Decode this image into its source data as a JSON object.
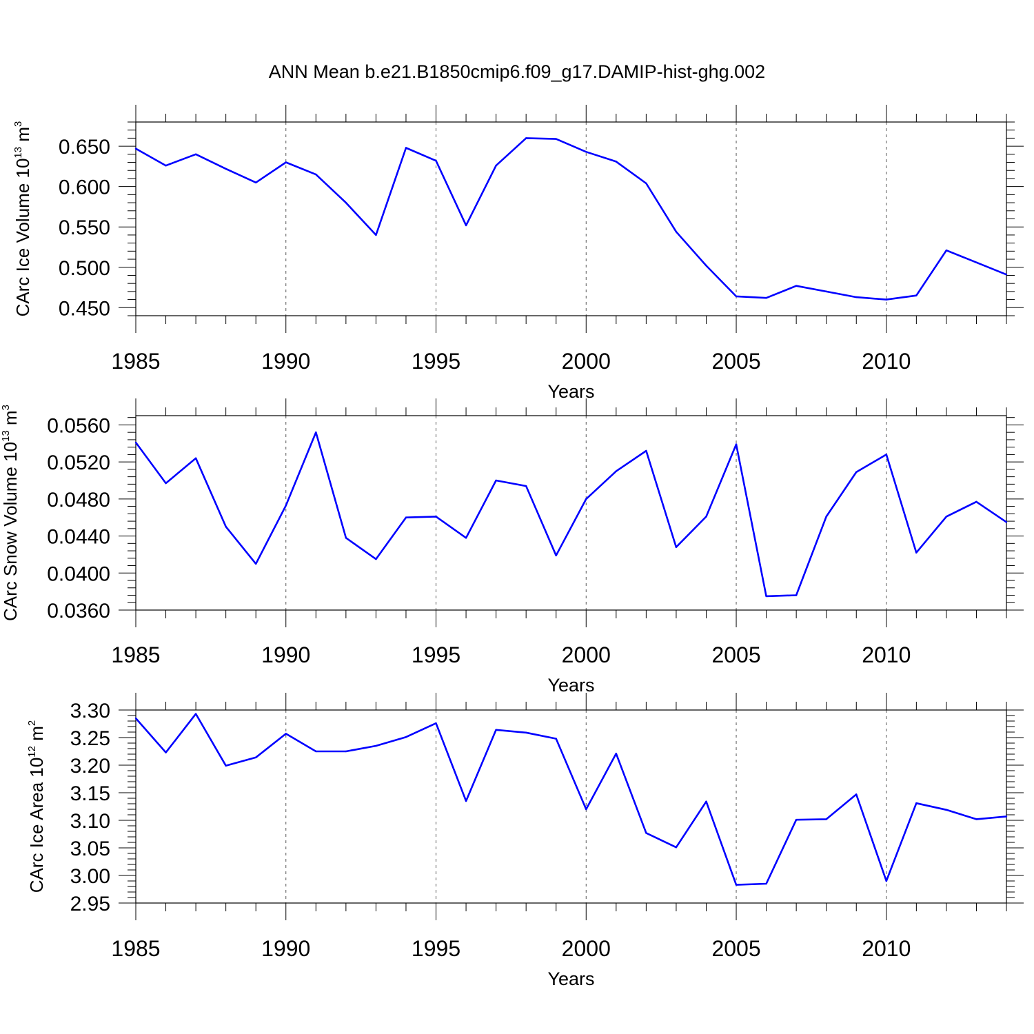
{
  "title": "ANN Mean b.e21.B1850cmip6.f09_g17.DAMIP-hist-ghg.002",
  "colors": {
    "line": "#0000ff",
    "axis": "#000000",
    "grid": "#555555"
  },
  "chart_data": [
    {
      "type": "line",
      "ylabel": {
        "text": "CArc Ice Volume 10",
        "exp": "13",
        "unit": " m",
        "unit_exp": "3"
      },
      "xlabel": "Years",
      "xlim": [
        1985,
        2014
      ],
      "ylim": [
        0.44,
        0.68
      ],
      "xticks": [
        1985,
        1990,
        1995,
        2000,
        2005,
        2010
      ],
      "yticks": [
        "0.450",
        "0.500",
        "0.550",
        "0.600",
        "0.650"
      ],
      "grid": "vertical dashed at major x ticks",
      "x": [
        1985,
        1986,
        1987,
        1988,
        1989,
        1990,
        1991,
        1992,
        1993,
        1994,
        1995,
        1996,
        1997,
        1998,
        1999,
        2000,
        2001,
        2002,
        2003,
        2004,
        2005,
        2006,
        2007,
        2008,
        2009,
        2010,
        2011,
        2012,
        2013,
        2014
      ],
      "values": [
        0.647,
        0.626,
        0.64,
        0.622,
        0.605,
        0.63,
        0.615,
        0.58,
        0.54,
        0.648,
        0.632,
        0.552,
        0.626,
        0.66,
        0.659,
        0.643,
        0.631,
        0.604,
        0.544,
        0.502,
        0.464,
        0.462,
        0.477,
        0.47,
        0.463,
        0.46,
        0.465,
        0.521,
        0.506,
        0.491
      ]
    },
    {
      "type": "line",
      "ylabel": {
        "text": "CArc Snow Volume 10",
        "exp": "13",
        "unit": " m",
        "unit_exp": "3"
      },
      "xlabel": "Years",
      "xlim": [
        1985,
        2014
      ],
      "ylim": [
        0.036,
        0.057
      ],
      "xticks": [
        1985,
        1990,
        1995,
        2000,
        2005,
        2010
      ],
      "yticks": [
        "0.0360",
        "0.0400",
        "0.0440",
        "0.0480",
        "0.0520",
        "0.0560"
      ],
      "grid": "vertical dashed at major x ticks",
      "x": [
        1985,
        1986,
        1987,
        1988,
        1989,
        1990,
        1991,
        1992,
        1993,
        1994,
        1995,
        1996,
        1997,
        1998,
        1999,
        2000,
        2001,
        2002,
        2003,
        2004,
        2005,
        2006,
        2007,
        2008,
        2009,
        2010,
        2011,
        2012,
        2013,
        2014
      ],
      "values": [
        0.0541,
        0.0497,
        0.0524,
        0.045,
        0.041,
        0.0473,
        0.0552,
        0.0438,
        0.0415,
        0.046,
        0.0461,
        0.0438,
        0.05,
        0.0494,
        0.0419,
        0.048,
        0.051,
        0.0532,
        0.0428,
        0.0461,
        0.0539,
        0.0375,
        0.0376,
        0.0461,
        0.0509,
        0.0528,
        0.0422,
        0.0461,
        0.0477,
        0.0455
      ]
    },
    {
      "type": "line",
      "ylabel": {
        "text": "CArc Ice Area 10",
        "exp": "12",
        "unit": " m",
        "unit_exp": "2"
      },
      "xlabel": "Years",
      "xlim": [
        1985,
        2014
      ],
      "ylim": [
        2.95,
        3.3
      ],
      "xticks": [
        1985,
        1990,
        1995,
        2000,
        2005,
        2010
      ],
      "yticks": [
        "2.95",
        "3.00",
        "3.05",
        "3.10",
        "3.15",
        "3.20",
        "3.25",
        "3.30"
      ],
      "grid": "vertical dashed at major x ticks",
      "x": [
        1985,
        1986,
        1987,
        1988,
        1989,
        1990,
        1991,
        1992,
        1993,
        1994,
        1995,
        1996,
        1997,
        1998,
        1999,
        2000,
        2001,
        2002,
        2003,
        2004,
        2005,
        2006,
        2007,
        2008,
        2009,
        2010,
        2011,
        2012,
        2013,
        2014
      ],
      "values": [
        3.285,
        3.223,
        3.293,
        3.199,
        3.214,
        3.257,
        3.225,
        3.225,
        3.235,
        3.251,
        3.276,
        3.135,
        3.264,
        3.259,
        3.248,
        3.12,
        3.221,
        3.077,
        3.051,
        3.134,
        2.983,
        2.985,
        3.101,
        3.102,
        3.147,
        2.99,
        3.131,
        3.119,
        3.102,
        3.107
      ]
    }
  ]
}
